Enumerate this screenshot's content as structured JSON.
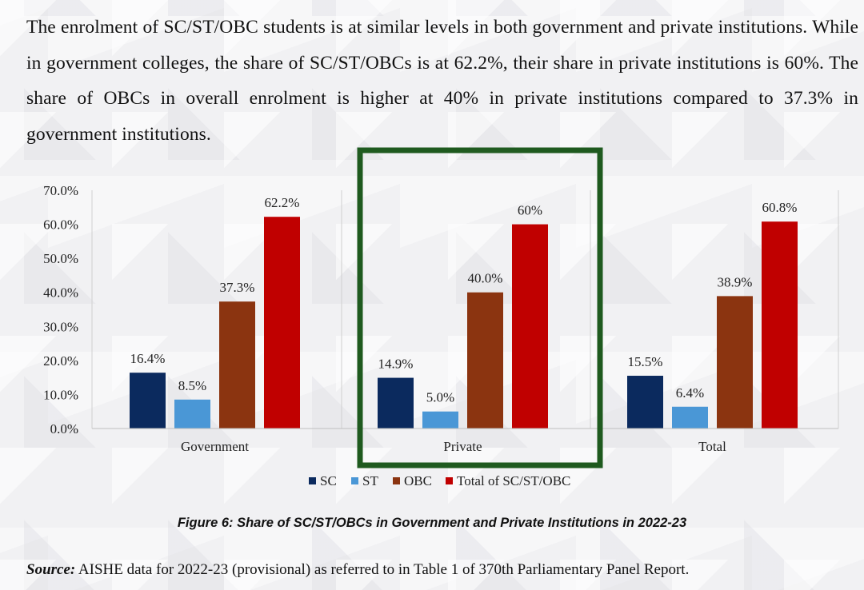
{
  "paragraph": "The enrolment of SC/ST/OBC students is at similar levels in both government and private institutions.  While in government colleges, the share of SC/ST/OBCs is at 62.2%, their share in private institutions is 60%. The share of OBCs in overall enrolment is higher at 40% in private institutions compared to 37.3% in government institutions.",
  "chart_data": {
    "type": "bar",
    "categories": [
      "Government",
      "Private",
      "Total"
    ],
    "series": [
      {
        "name": "SC",
        "color": "#0b2a5e",
        "values": [
          16.4,
          14.9,
          15.5
        ],
        "labels": [
          "16.4%",
          "14.9%",
          "15.5%"
        ]
      },
      {
        "name": "ST",
        "color": "#4a97d6",
        "values": [
          8.5,
          5.0,
          6.4
        ],
        "labels": [
          "8.5%",
          "5.0%",
          "6.4%"
        ]
      },
      {
        "name": "OBC",
        "color": "#8b3410",
        "values": [
          37.3,
          40.0,
          38.9
        ],
        "labels": [
          "37.3%",
          "40.0%",
          "38.9%"
        ]
      },
      {
        "name": "Total of SC/ST/OBC",
        "color": "#c00000",
        "values": [
          62.2,
          60,
          60.8
        ],
        "labels": [
          "62.2%",
          "60%",
          "60.8%"
        ]
      }
    ],
    "ylim": [
      0,
      70
    ],
    "yticks": [
      "0.0%",
      "10.0%",
      "20.0%",
      "30.0%",
      "40.0%",
      "50.0%",
      "60.0%",
      "70.0%"
    ],
    "grid": false,
    "legend": "bottom",
    "highlight": {
      "category": "Private",
      "color": "#1f5a1f"
    }
  },
  "caption": "Figure 6: Share of SC/ST/OBCs in Government and Private Institutions in 2022-23",
  "source": {
    "label": "Source:",
    "text": " AISHE data for 2022-23 (provisional) as referred to in Table 1 of 370th Parliamentary Panel Report."
  }
}
